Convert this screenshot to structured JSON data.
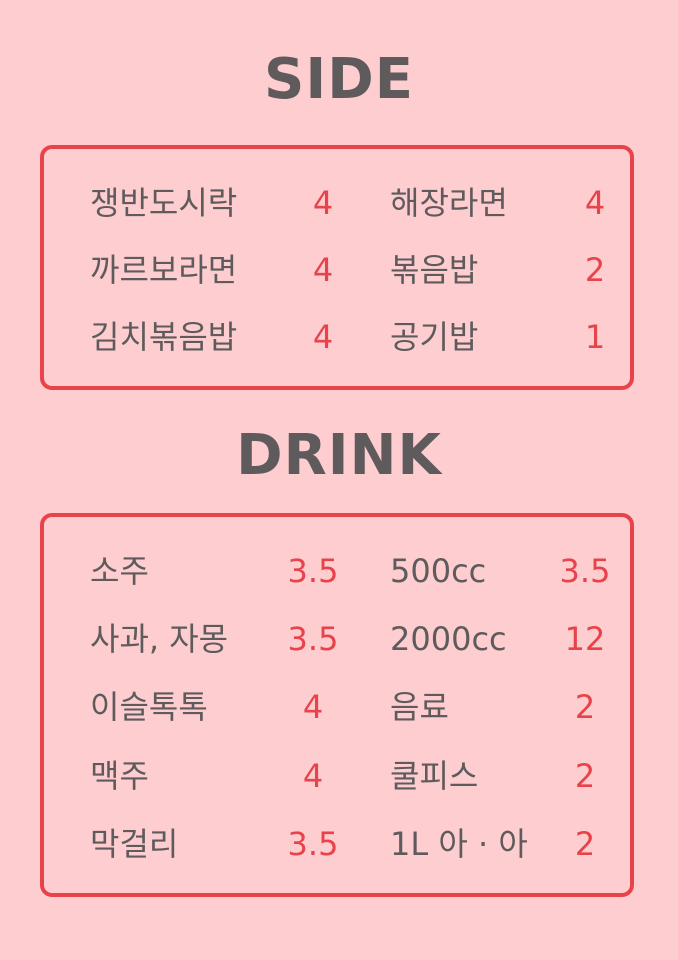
{
  "side": {
    "title": "SIDE",
    "items": [
      {
        "name": "쟁반도시락",
        "price": "4"
      },
      {
        "name": "해장라면",
        "price": "4"
      },
      {
        "name": "까르보라면",
        "price": "4"
      },
      {
        "name": "볶음밥",
        "price": "2"
      },
      {
        "name": "김치볶음밥",
        "price": "4"
      },
      {
        "name": "공기밥",
        "price": "1"
      }
    ]
  },
  "drink": {
    "title": "DRINK",
    "items": [
      {
        "name": "소주",
        "price": "3.5"
      },
      {
        "name": "500cc",
        "price": "3.5"
      },
      {
        "name": "사과, 자몽",
        "price": "3.5"
      },
      {
        "name": "2000cc",
        "price": "12"
      },
      {
        "name": "이슬톡톡",
        "price": "4"
      },
      {
        "name": "음료",
        "price": "2"
      },
      {
        "name": "맥주",
        "price": "4"
      },
      {
        "name": "쿨피스",
        "price": "2"
      },
      {
        "name": "막걸리",
        "price": "3.5"
      },
      {
        "name": "1L 아 · 아",
        "price": "2"
      }
    ]
  },
  "colors": {
    "background": "#fdcdd0",
    "accent": "#e8424a",
    "text": "#5f5b5c"
  }
}
